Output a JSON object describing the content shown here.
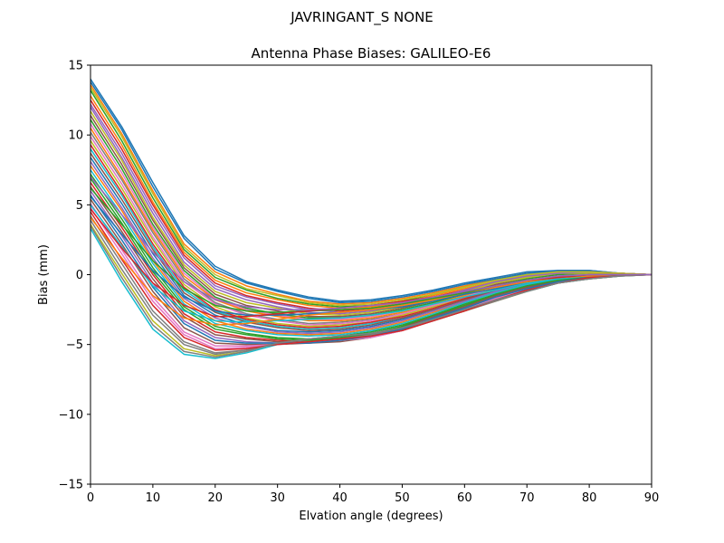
{
  "figure": {
    "suptitle": "JAVRINGANT_S    NONE"
  },
  "chart_data": {
    "type": "line",
    "title": "Antenna Phase Biases: GALILEO-E6",
    "xlabel": "Elvation angle (degrees)",
    "ylabel": "Bias (mm)",
    "xlim": [
      0,
      90
    ],
    "ylim": [
      -15,
      15
    ],
    "xticks": [
      0,
      10,
      20,
      30,
      40,
      50,
      60,
      70,
      80,
      90
    ],
    "xtick_labels": [
      "0",
      "10",
      "20",
      "30",
      "40",
      "50",
      "60",
      "70",
      "80",
      "90"
    ],
    "yticks": [
      -15,
      -10,
      -5,
      0,
      5,
      10,
      15
    ],
    "ytick_labels": [
      "−15",
      "−10",
      "−5",
      "0",
      "5",
      "10",
      "15"
    ],
    "grid": false,
    "legend": "none",
    "x": [
      0,
      5,
      10,
      15,
      20,
      25,
      30,
      35,
      40,
      45,
      50,
      55,
      60,
      65,
      70,
      75,
      80,
      85,
      90
    ],
    "series_colors": [
      "#1f77b4",
      "#ff7f0e",
      "#2ca02c",
      "#d62728",
      "#9467bd",
      "#8c564b",
      "#e377c2",
      "#7f7f7f",
      "#bcbd22",
      "#17becf"
    ],
    "series": [
      {
        "values": [
          14.0,
          10.6,
          6.6,
          2.8,
          0.6,
          -0.5,
          -1.1,
          -1.6,
          -1.9,
          -1.8,
          -1.5,
          -1.1,
          -0.6,
          -0.2,
          0.2,
          0.3,
          0.3,
          0.1,
          0.0
        ]
      },
      {
        "values": [
          13.6,
          10.1,
          6.0,
          2.2,
          0.2,
          -0.8,
          -1.4,
          -1.9,
          -2.1,
          -2.0,
          -1.7,
          -1.3,
          -0.8,
          -0.3,
          0.1,
          0.2,
          0.2,
          0.1,
          0.0
        ]
      },
      {
        "values": [
          13.2,
          9.6,
          5.5,
          1.8,
          -0.2,
          -1.1,
          -1.7,
          -2.1,
          -2.3,
          -2.2,
          -1.9,
          -1.4,
          -0.9,
          -0.4,
          0.0,
          0.2,
          0.2,
          0.1,
          0.0
        ]
      },
      {
        "values": [
          12.5,
          9.0,
          5.0,
          1.4,
          -0.6,
          -1.5,
          -2.0,
          -2.4,
          -2.6,
          -2.4,
          -2.1,
          -1.6,
          -1.1,
          -0.5,
          -0.1,
          0.1,
          0.2,
          0.1,
          0.0
        ]
      },
      {
        "values": [
          12.0,
          8.4,
          4.4,
          0.9,
          -1.0,
          -1.8,
          -2.3,
          -2.7,
          -2.8,
          -2.6,
          -2.3,
          -1.8,
          -1.2,
          -0.6,
          -0.2,
          0.1,
          0.1,
          0.1,
          0.0
        ]
      },
      {
        "values": [
          11.4,
          7.9,
          3.9,
          0.5,
          -1.4,
          -2.2,
          -2.6,
          -3.0,
          -3.0,
          -2.8,
          -2.4,
          -1.9,
          -1.3,
          -0.7,
          -0.3,
          0.0,
          0.1,
          0.0,
          0.0
        ]
      },
      {
        "values": [
          10.8,
          7.3,
          3.4,
          0.1,
          -1.7,
          -2.5,
          -2.9,
          -3.2,
          -3.2,
          -3.0,
          -2.6,
          -2.0,
          -1.4,
          -0.8,
          -0.3,
          0.0,
          0.1,
          0.0,
          0.0
        ]
      },
      {
        "values": [
          10.2,
          6.8,
          3.0,
          -0.3,
          -2.0,
          -2.8,
          -3.2,
          -3.5,
          -3.4,
          -3.2,
          -2.8,
          -2.2,
          -1.6,
          -0.9,
          -0.4,
          -0.1,
          0.0,
          0.0,
          0.0
        ]
      },
      {
        "values": [
          9.6,
          6.2,
          2.5,
          -0.7,
          -2.3,
          -3.1,
          -3.5,
          -3.7,
          -3.6,
          -3.4,
          -2.9,
          -2.3,
          -1.7,
          -1.0,
          -0.5,
          -0.2,
          0.0,
          0.0,
          0.0
        ]
      },
      {
        "values": [
          9.0,
          5.7,
          2.0,
          -1.1,
          -2.6,
          -3.3,
          -3.7,
          -3.9,
          -3.8,
          -3.5,
          -3.1,
          -2.5,
          -1.8,
          -1.1,
          -0.6,
          -0.2,
          0.0,
          0.0,
          0.0
        ]
      },
      {
        "values": [
          8.4,
          5.1,
          1.5,
          -1.5,
          -2.9,
          -3.6,
          -4.0,
          -4.1,
          -4.0,
          -3.7,
          -3.2,
          -2.6,
          -1.9,
          -1.2,
          -0.6,
          -0.3,
          -0.1,
          0.0,
          0.0
        ]
      },
      {
        "values": [
          7.8,
          4.6,
          1.0,
          -1.9,
          -3.3,
          -3.9,
          -4.2,
          -4.3,
          -4.2,
          -3.9,
          -3.4,
          -2.7,
          -2.0,
          -1.3,
          -0.7,
          -0.3,
          -0.1,
          0.0,
          0.0
        ]
      },
      {
        "values": [
          7.2,
          4.0,
          0.5,
          -2.3,
          -3.7,
          -4.2,
          -4.5,
          -4.6,
          -4.4,
          -4.1,
          -3.6,
          -2.9,
          -2.1,
          -1.4,
          -0.8,
          -0.4,
          -0.1,
          0.0,
          0.0
        ]
      },
      {
        "values": [
          6.6,
          3.4,
          0.0,
          -2.8,
          -4.1,
          -4.5,
          -4.7,
          -4.8,
          -4.6,
          -4.3,
          -3.7,
          -3.0,
          -2.2,
          -1.5,
          -0.9,
          -0.4,
          -0.1,
          0.0,
          0.0
        ]
      },
      {
        "values": [
          6.0,
          2.8,
          -0.6,
          -3.3,
          -4.5,
          -4.8,
          -4.9,
          -4.9,
          -4.7,
          -4.4,
          -3.9,
          -3.1,
          -2.3,
          -1.6,
          -1.0,
          -0.5,
          -0.2,
          0.0,
          0.0
        ]
      },
      {
        "values": [
          5.4,
          2.2,
          -1.2,
          -3.8,
          -4.9,
          -5.0,
          -5.0,
          -4.9,
          -4.8,
          -4.5,
          -4.0,
          -3.2,
          -2.4,
          -1.7,
          -1.0,
          -0.5,
          -0.2,
          0.0,
          0.0
        ]
      },
      {
        "values": [
          4.8,
          1.5,
          -1.9,
          -4.3,
          -5.3,
          -5.2,
          -5.0,
          -4.8,
          -4.7,
          -4.5,
          -4.0,
          -3.3,
          -2.5,
          -1.8,
          -1.1,
          -0.6,
          -0.2,
          0.0,
          0.0
        ]
      },
      {
        "values": [
          4.2,
          0.8,
          -2.6,
          -4.8,
          -5.6,
          -5.4,
          -4.9,
          -4.7,
          -4.6,
          -4.4,
          -4.0,
          -3.3,
          -2.6,
          -1.8,
          -1.1,
          -0.6,
          -0.2,
          0.0,
          0.0
        ]
      },
      {
        "values": [
          3.6,
          0.1,
          -3.3,
          -5.3,
          -5.8,
          -5.5,
          -4.9,
          -4.6,
          -4.5,
          -4.3,
          -3.9,
          -3.3,
          -2.6,
          -1.9,
          -1.2,
          -0.6,
          -0.3,
          -0.1,
          0.0
        ]
      },
      {
        "values": [
          3.3,
          -0.5,
          -3.9,
          -5.7,
          -6.0,
          -5.6,
          -5.0,
          -4.6,
          -4.4,
          -4.2,
          -3.8,
          -3.2,
          -2.5,
          -1.8,
          -1.2,
          -0.6,
          -0.3,
          -0.1,
          0.0
        ]
      },
      {
        "values": [
          13.8,
          10.4,
          6.3,
          2.6,
          0.4,
          -0.6,
          -1.2,
          -1.7,
          -2.0,
          -1.9,
          -1.6,
          -1.2,
          -0.7,
          -0.3,
          0.1,
          0.3,
          0.3,
          0.1,
          0.0
        ]
      },
      {
        "values": [
          12.8,
          9.3,
          5.2,
          1.6,
          -0.4,
          -1.3,
          -1.8,
          -2.2,
          -2.4,
          -2.3,
          -2.0,
          -1.5,
          -1.0,
          -0.5,
          -0.1,
          0.2,
          0.2,
          0.1,
          0.0
        ]
      },
      {
        "values": [
          11.1,
          7.6,
          3.6,
          0.3,
          -1.6,
          -2.4,
          -2.8,
          -3.1,
          -3.1,
          -2.9,
          -2.5,
          -2.0,
          -1.4,
          -0.8,
          -0.3,
          0.0,
          0.1,
          0.0,
          0.0
        ]
      },
      {
        "values": [
          9.3,
          5.9,
          2.2,
          -0.9,
          -2.5,
          -3.2,
          -3.6,
          -3.8,
          -3.7,
          -3.4,
          -3.0,
          -2.4,
          -1.7,
          -1.1,
          -0.5,
          -0.2,
          0.0,
          0.0,
          0.0
        ]
      },
      {
        "values": [
          8.1,
          4.8,
          1.2,
          -1.7,
          -3.1,
          -3.7,
          -4.1,
          -4.2,
          -4.1,
          -3.8,
          -3.3,
          -2.6,
          -1.9,
          -1.2,
          -0.7,
          -0.3,
          -0.1,
          0.0,
          0.0
        ]
      },
      {
        "values": [
          6.3,
          3.1,
          -0.3,
          -3.0,
          -4.3,
          -4.6,
          -4.8,
          -4.8,
          -4.6,
          -4.3,
          -3.8,
          -3.0,
          -2.3,
          -1.5,
          -0.9,
          -0.5,
          -0.2,
          0.0,
          0.0
        ]
      },
      {
        "values": [
          5.1,
          1.8,
          -1.6,
          -4.1,
          -5.1,
          -5.1,
          -5.0,
          -4.8,
          -4.7,
          -4.5,
          -4.0,
          -3.3,
          -2.5,
          -1.7,
          -1.1,
          -0.6,
          -0.2,
          0.0,
          0.0
        ]
      },
      {
        "values": [
          3.9,
          0.4,
          -2.9,
          -5.0,
          -5.7,
          -5.4,
          -4.9,
          -4.6,
          -4.5,
          -4.3,
          -3.9,
          -3.3,
          -2.6,
          -1.9,
          -1.2,
          -0.6,
          -0.3,
          -0.1,
          0.0
        ]
      },
      {
        "values": [
          11.7,
          8.2,
          4.1,
          0.7,
          -1.2,
          -2.0,
          -2.4,
          -2.8,
          -2.9,
          -2.7,
          -2.3,
          -1.8,
          -1.2,
          -0.6,
          -0.2,
          0.1,
          0.1,
          0.1,
          0.0
        ]
      },
      {
        "values": [
          7.5,
          4.3,
          0.8,
          -2.1,
          -3.5,
          -4.0,
          -4.3,
          -4.4,
          -4.3,
          -4.0,
          -3.5,
          -2.8,
          -2.0,
          -1.3,
          -0.7,
          -0.3,
          -0.1,
          0.0,
          0.0
        ]
      },
      {
        "values": [
          5.7,
          2.5,
          -0.9,
          -3.5,
          -4.7,
          -4.9,
          -4.9,
          -4.9,
          -4.7,
          -4.4,
          -3.9,
          -3.1,
          -2.4,
          -1.6,
          -1.0,
          -0.5,
          -0.2,
          0.0,
          0.0
        ]
      },
      {
        "values": [
          10.5,
          7.0,
          3.2,
          -0.1,
          -1.8,
          -2.6,
          -3.0,
          -3.3,
          -3.3,
          -3.1,
          -2.7,
          -2.1,
          -1.5,
          -0.8,
          -0.4,
          -0.1,
          0.0,
          0.0,
          0.0
        ]
      },
      {
        "values": [
          6.9,
          3.7,
          0.2,
          -2.5,
          -3.9,
          -4.3,
          -4.6,
          -4.7,
          -4.5,
          -4.2,
          -3.7,
          -2.9,
          -2.2,
          -1.4,
          -0.8,
          -0.4,
          -0.1,
          0.0,
          0.0
        ]
      },
      {
        "values": [
          4.5,
          1.1,
          -2.2,
          -4.5,
          -5.4,
          -5.3,
          -5.0,
          -4.8,
          -4.6,
          -4.4,
          -4.0,
          -3.3,
          -2.6,
          -1.8,
          -1.1,
          -0.6,
          -0.2,
          0.0,
          0.0
        ]
      },
      {
        "values": [
          12.2,
          8.7,
          4.7,
          1.2,
          -0.8,
          -1.6,
          -2.1,
          -2.5,
          -2.7,
          -2.5,
          -2.2,
          -1.7,
          -1.1,
          -0.5,
          -0.1,
          0.1,
          0.2,
          0.1,
          0.0
        ]
      },
      {
        "values": [
          8.7,
          5.4,
          1.8,
          -1.3,
          -2.7,
          -3.4,
          -3.8,
          -4.0,
          -3.9,
          -3.6,
          -3.1,
          -2.5,
          -1.8,
          -1.1,
          -0.6,
          -0.2,
          0.0,
          0.0,
          0.0
        ]
      },
      {
        "values": [
          9.9,
          6.5,
          2.7,
          -0.5,
          -2.1,
          -2.9,
          -3.3,
          -3.6,
          -3.5,
          -3.3,
          -2.8,
          -2.2,
          -1.6,
          -0.9,
          -0.4,
          -0.1,
          0.0,
          0.0,
          0.0
        ]
      },
      {
        "values": [
          3.5,
          -0.2,
          -3.6,
          -5.5,
          -5.9,
          -5.5,
          -4.9,
          -4.6,
          -4.4,
          -4.2,
          -3.8,
          -3.2,
          -2.5,
          -1.8,
          -1.2,
          -0.6,
          -0.3,
          -0.1,
          0.0
        ]
      },
      {
        "values": [
          13.4,
          9.9,
          5.8,
          2.0,
          0.0,
          -1.0,
          -1.5,
          -2.0,
          -2.2,
          -2.1,
          -1.8,
          -1.4,
          -0.9,
          -0.4,
          0.0,
          0.2,
          0.2,
          0.1,
          0.0
        ]
      },
      {
        "values": [
          5.0,
          2.0,
          -0.8,
          -2.6,
          -3.3,
          -3.4,
          -3.3,
          -3.2,
          -3.1,
          -2.9,
          -2.6,
          -2.1,
          -1.6,
          -1.1,
          -0.6,
          -0.3,
          -0.1,
          0.0,
          0.0
        ]
      },
      {
        "values": [
          5.6,
          2.9,
          0.3,
          -1.6,
          -2.6,
          -2.9,
          -2.9,
          -2.8,
          -2.7,
          -2.5,
          -2.3,
          -1.9,
          -1.4,
          -1.0,
          -0.5,
          -0.2,
          -0.1,
          0.0,
          0.0
        ]
      },
      {
        "values": [
          4.1,
          1.2,
          -1.5,
          -3.1,
          -3.6,
          -3.5,
          -3.2,
          -2.9,
          -2.7,
          -2.5,
          -2.2,
          -1.8,
          -1.3,
          -0.9,
          -0.5,
          -0.2,
          -0.1,
          0.0,
          0.0
        ]
      },
      {
        "values": [
          6.2,
          3.6,
          1.0,
          -1.0,
          -2.2,
          -2.6,
          -2.7,
          -2.6,
          -2.5,
          -2.4,
          -2.1,
          -1.7,
          -1.3,
          -0.8,
          -0.4,
          -0.2,
          0.0,
          0.0,
          0.0
        ]
      },
      {
        "values": [
          4.7,
          1.9,
          -0.6,
          -2.2,
          -3.0,
          -3.0,
          -2.8,
          -2.6,
          -2.4,
          -2.2,
          -1.9,
          -1.6,
          -1.2,
          -0.8,
          -0.4,
          -0.2,
          0.0,
          0.0,
          0.0
        ]
      },
      {
        "values": [
          7.0,
          4.3,
          1.6,
          -0.5,
          -1.8,
          -2.3,
          -2.5,
          -2.5,
          -2.4,
          -2.2,
          -2.0,
          -1.6,
          -1.2,
          -0.8,
          -0.4,
          -0.1,
          0.0,
          0.0,
          0.0
        ]
      }
    ]
  }
}
